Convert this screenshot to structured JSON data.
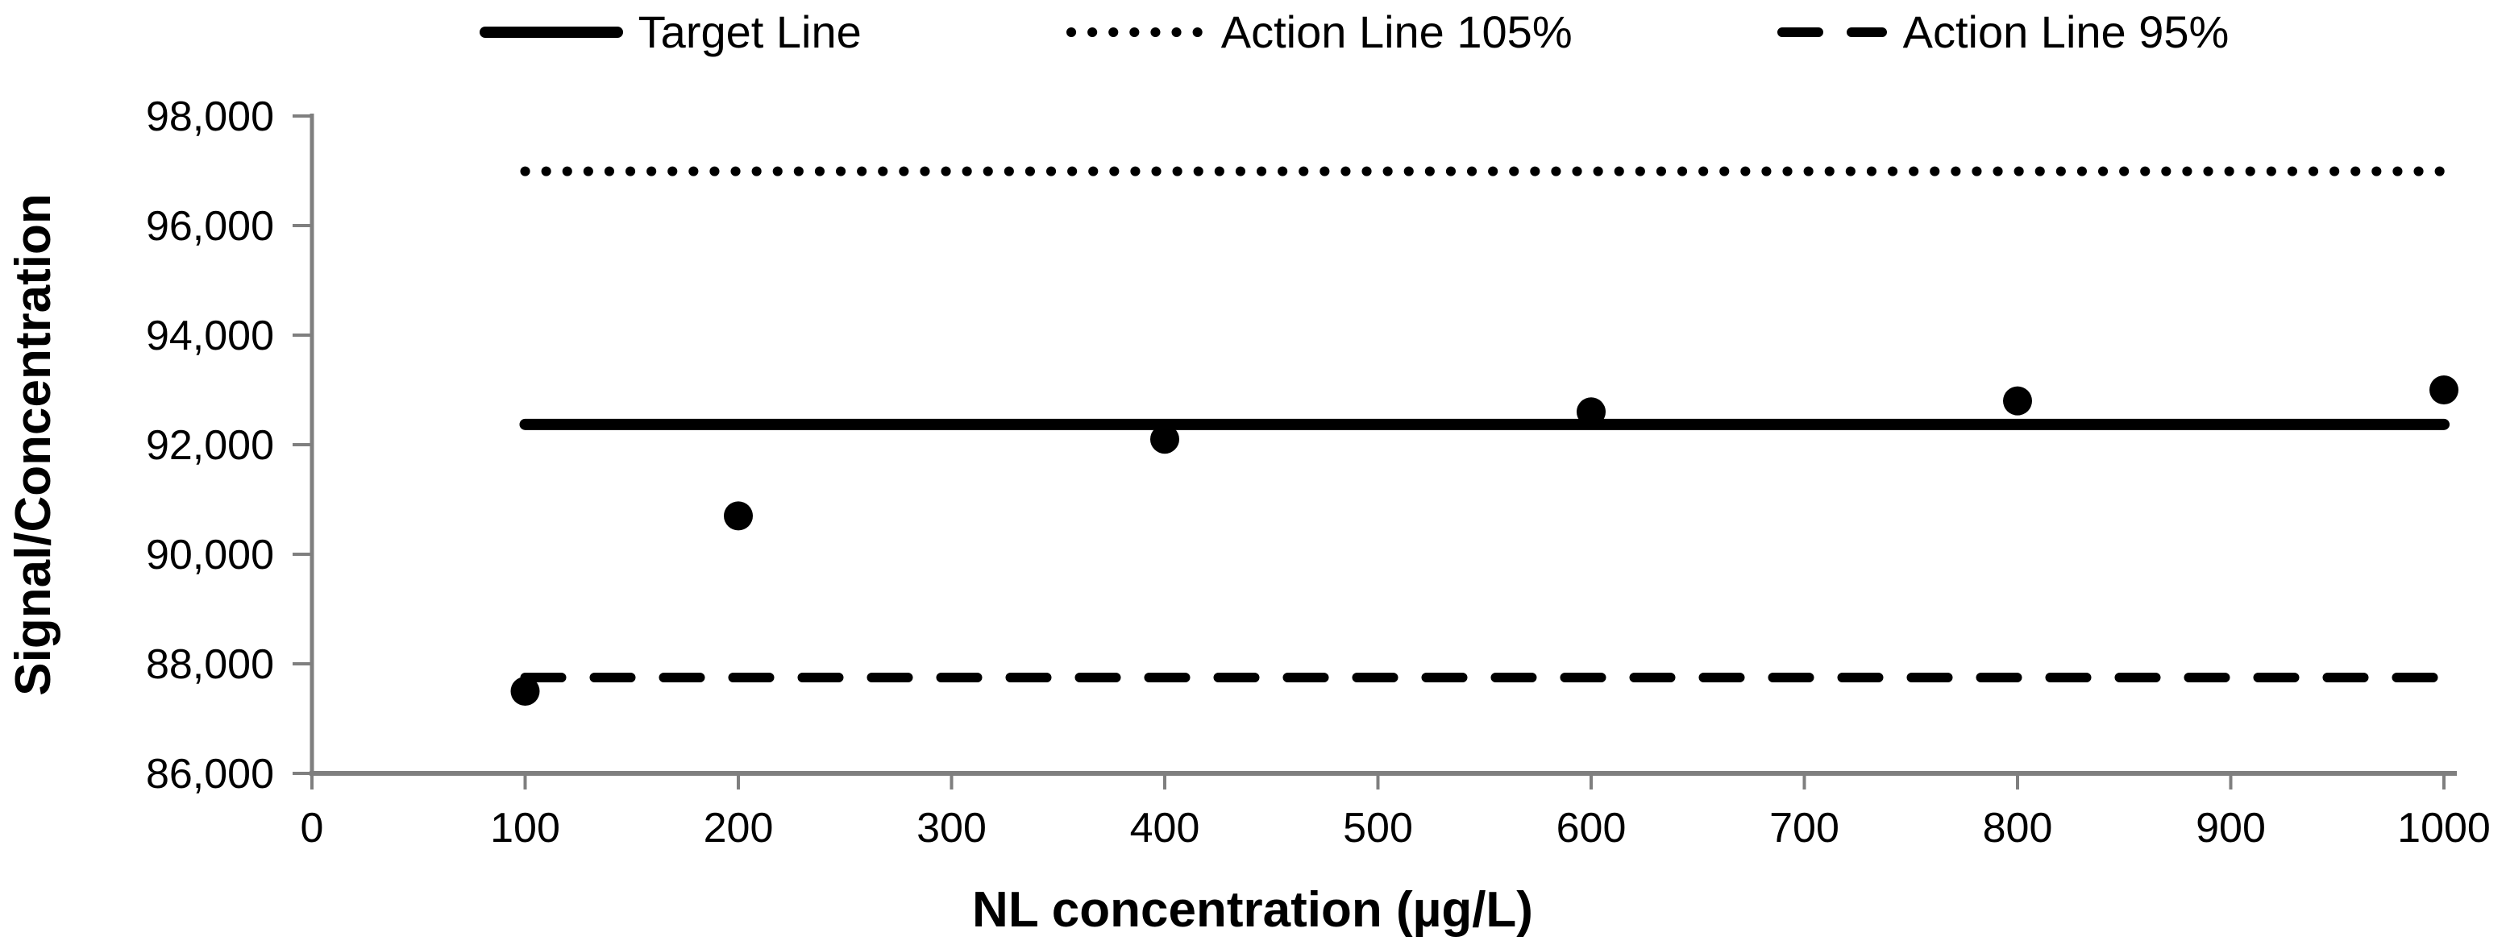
{
  "legend": {
    "items": [
      {
        "label": "Target Line",
        "marker": "solid-line"
      },
      {
        "label": "Action Line 105%",
        "marker": "dotted-line"
      },
      {
        "label": "Action Line 95%",
        "marker": "dashed-line"
      }
    ]
  },
  "chart_data": {
    "type": "scatter",
    "title": "",
    "xlabel": "NL concentration (µg/L)",
    "ylabel": "Signal/Concentration",
    "xlim": [
      0,
      1000
    ],
    "ylim": [
      86000,
      98000
    ],
    "x_ticks": [
      0,
      100,
      200,
      300,
      400,
      500,
      600,
      700,
      800,
      900,
      1000
    ],
    "y_ticks": [
      86000,
      88000,
      90000,
      92000,
      94000,
      96000,
      98000
    ],
    "grid": false,
    "legend_position": "top-center",
    "series": [
      {
        "name": "Signal/Concentration data points",
        "type": "scatter",
        "x": [
          100,
          200,
          400,
          600,
          800,
          1000
        ],
        "y": [
          87500,
          90700,
          92100,
          92600,
          92800,
          93000
        ],
        "color": "#000000"
      },
      {
        "name": "Target Line",
        "type": "line",
        "style": "solid",
        "y_value": 92370,
        "x_span": [
          100,
          1000
        ],
        "color": "#000000"
      },
      {
        "name": "Action Line 105%",
        "type": "line",
        "style": "dotted",
        "y_value": 96990,
        "x_span": [
          100,
          1000
        ],
        "color": "#000000"
      },
      {
        "name": "Action Line 95%",
        "type": "line",
        "style": "dashed",
        "y_value": 87750,
        "x_span": [
          100,
          1000
        ],
        "color": "#000000"
      }
    ],
    "colors": {
      "axis": "#7f7f7f",
      "text": "#000000"
    }
  }
}
